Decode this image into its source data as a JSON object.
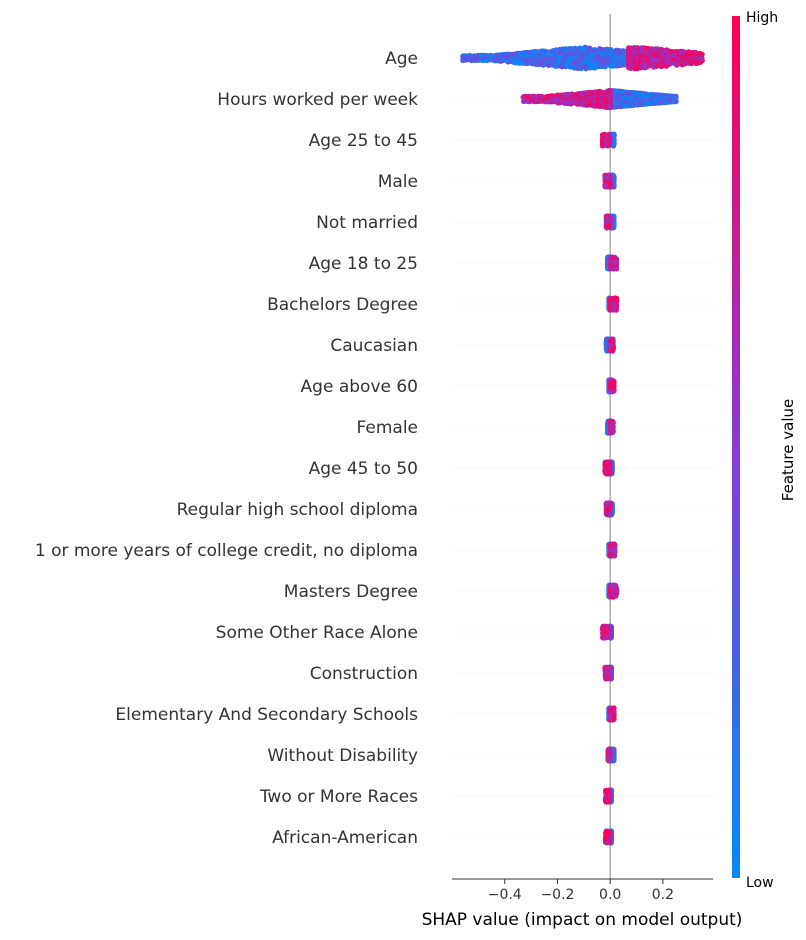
{
  "chart_data": {
    "type": "scatter",
    "subtype": "shap-beeswarm",
    "xlabel": "SHAP value (impact on model output)",
    "xlim": [
      -0.6,
      0.39
    ],
    "xticks": [
      -0.4,
      -0.2,
      0.0,
      0.2
    ],
    "xtick_labels": [
      "−0.4",
      "−0.2",
      "0.0",
      "0.2"
    ],
    "colorbar": {
      "label": "Feature value",
      "high_label": "High",
      "low_label": "Low",
      "low_color": "#008bfb",
      "mid_color": "#8a3ad6",
      "high_color": "#ff0052"
    },
    "features": [
      {
        "name": "Age",
        "low_range": [
          -0.56,
          0.08
        ],
        "high_range": [
          0.07,
          0.35
        ],
        "density": 1.0
      },
      {
        "name": "Hours worked per week",
        "low_range": [
          0.0,
          0.25
        ],
        "high_range": [
          -0.33,
          0.0
        ],
        "density": 0.8
      },
      {
        "name": "Age 25 to 45",
        "low_range": [
          0.0,
          0.015
        ],
        "high_range": [
          -0.03,
          0.0
        ],
        "density": 0.3
      },
      {
        "name": "Male",
        "low_range": [
          0.0,
          0.015
        ],
        "high_range": [
          -0.02,
          0.0
        ],
        "density": 0.3
      },
      {
        "name": "Not married",
        "low_range": [
          0.0,
          0.015
        ],
        "high_range": [
          -0.015,
          0.0
        ],
        "density": 0.3
      },
      {
        "name": "Age 18 to 25",
        "low_range": [
          -0.01,
          0.0
        ],
        "high_range": [
          0.0,
          0.025
        ],
        "density": 0.2
      },
      {
        "name": "Bachelors Degree",
        "low_range": [
          -0.005,
          0.0
        ],
        "high_range": [
          0.0,
          0.025
        ],
        "density": 0.2
      },
      {
        "name": "Caucasian",
        "low_range": [
          -0.015,
          0.0
        ],
        "high_range": [
          0.0,
          0.012
        ],
        "density": 0.2
      },
      {
        "name": "Age above 60",
        "low_range": [
          -0.005,
          0.0
        ],
        "high_range": [
          0.0,
          0.015
        ],
        "density": 0.2
      },
      {
        "name": "Female",
        "low_range": [
          -0.01,
          0.0
        ],
        "high_range": [
          0.0,
          0.012
        ],
        "density": 0.2
      },
      {
        "name": "Age 45 to 50",
        "low_range": [
          0.0,
          0.008
        ],
        "high_range": [
          -0.02,
          0.0
        ],
        "density": 0.2
      },
      {
        "name": "Regular high school diploma",
        "low_range": [
          0.0,
          0.008
        ],
        "high_range": [
          -0.015,
          0.0
        ],
        "density": 0.2
      },
      {
        "name": "1 or more years of college credit, no diploma",
        "low_range": [
          -0.005,
          0.0
        ],
        "high_range": [
          0.0,
          0.018
        ],
        "density": 0.2
      },
      {
        "name": "Masters Degree",
        "low_range": [
          -0.005,
          0.0
        ],
        "high_range": [
          0.0,
          0.025
        ],
        "density": 0.2
      },
      {
        "name": "Some Other Race Alone",
        "low_range": [
          0.0,
          0.005
        ],
        "high_range": [
          -0.03,
          0.0
        ],
        "density": 0.2
      },
      {
        "name": "Construction",
        "low_range": [
          0.0,
          0.005
        ],
        "high_range": [
          -0.02,
          0.0
        ],
        "density": 0.2
      },
      {
        "name": "Elementary And Secondary Schools",
        "low_range": [
          -0.005,
          0.0
        ],
        "high_range": [
          0.0,
          0.015
        ],
        "density": 0.2
      },
      {
        "name": "Without Disability",
        "low_range": [
          0.0,
          0.015
        ],
        "high_range": [
          -0.008,
          0.0
        ],
        "density": 0.2
      },
      {
        "name": "Two or More Races",
        "low_range": [
          0.0,
          0.005
        ],
        "high_range": [
          -0.018,
          0.0
        ],
        "density": 0.2
      },
      {
        "name": "African-American",
        "low_range": [
          0.0,
          0.005
        ],
        "high_range": [
          -0.018,
          0.0
        ],
        "density": 0.2
      }
    ]
  }
}
